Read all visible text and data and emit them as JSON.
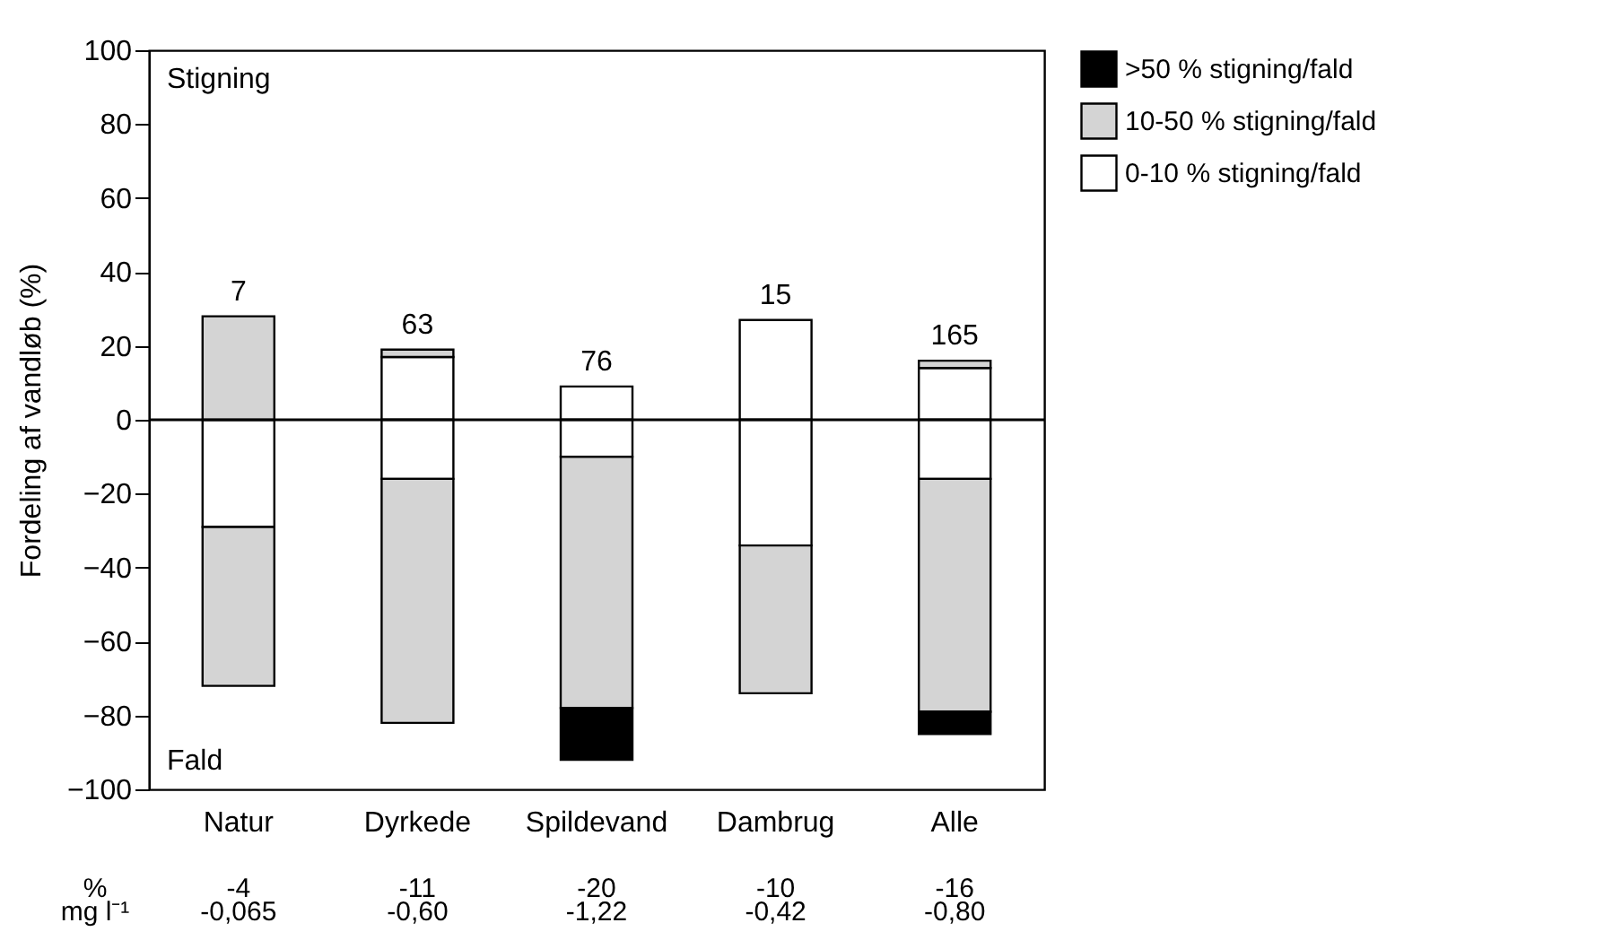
{
  "chart_data": {
    "type": "bar",
    "stacked": true,
    "ylabel": "Fordeling af vandløb (%)",
    "categories": [
      "Natur",
      "Dyrkede",
      "Spildevand",
      "Dambrug",
      "Alle"
    ],
    "series": [
      {
        "name": "0-10 % stigning/fald",
        "color": "#ffffff",
        "values": [
          null,
          17,
          9,
          27,
          14
        ]
      },
      {
        "color": "#ffffff",
        "values": [
          -29,
          -16,
          -10,
          -34,
          -16
        ]
      },
      {
        "name": "10-50 % stigning/fald",
        "color": "#d4d4d4",
        "values": [
          28,
          2,
          null,
          null,
          2
        ]
      },
      {
        "color": "#d4d4d4",
        "values": [
          -43,
          -66,
          -68,
          -40,
          -63
        ]
      },
      {
        "name": ">50 % stigning/fald",
        "color": "#000000",
        "values": [
          null,
          null,
          -14,
          null,
          -6
        ]
      }
    ],
    "ylim": [
      -100,
      100
    ],
    "yticks": [
      -100,
      -80,
      -60,
      -40,
      -20,
      0,
      20,
      40,
      60,
      80,
      100
    ],
    "grid": false,
    "legend": "top right",
    "ref_lines": [
      {
        "axis": "y",
        "value": 0
      }
    ],
    "annotations": [
      "Stigning",
      "Fald",
      "%",
      "mg l⁻¹",
      "-4",
      "-11",
      "-20",
      "-10",
      "-16",
      "-0,065",
      "-0,60",
      "-1,22",
      "-0,42",
      "-0,80",
      {
        "text": "7",
        "x": "Natur",
        "y": 28
      },
      {
        "text": "63",
        "x": "Dyrkede",
        "y": 19
      },
      {
        "text": "76",
        "x": "Spildevand",
        "y": 9
      },
      {
        "text": "15",
        "x": "Dambrug",
        "y": 27
      },
      {
        "text": "165",
        "x": "Alle",
        "y": 16
      }
    ]
  }
}
